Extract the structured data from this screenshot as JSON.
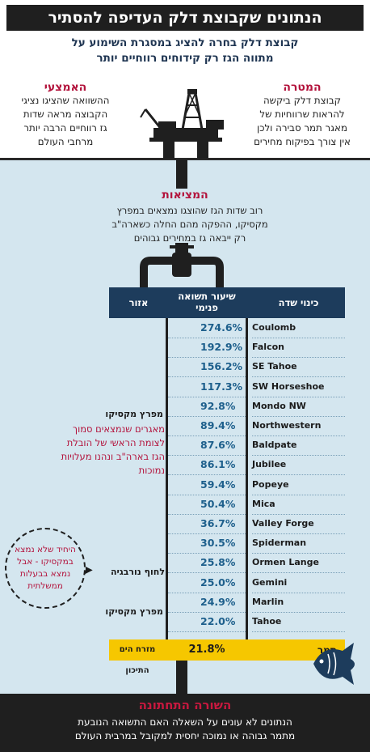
{
  "header": {
    "title": "הנתונים שקבוצת דלק העדיפה להסתיר",
    "subtitle_line1": "קבוצת דלק בחרה להציג במסגרת השימוע על",
    "subtitle_line2": "מתווה הגז רק קידוחים רווחיים יותר"
  },
  "goal": {
    "heading": "המטרה",
    "lines": [
      "קבוצת דלק ביקשה",
      "להראות שרווחיות של",
      "מאגר תמר סבירה ולכן",
      "אין צורך בפיקוח מחירים"
    ]
  },
  "means": {
    "heading": "האמצעי",
    "lines": [
      "ההשוואה שהציגו נציגי",
      "הקבוצה מראה שדות",
      "גז רווחיים הרבה יותר",
      "מרחבי העולם"
    ]
  },
  "findings": {
    "heading": "המציאות",
    "lines": [
      "רוב שדות הגז שהוצגו נמצאים במפרץ",
      "מקסיקו, ההפקה מהם החלה כשארה\"ב",
      "רק ייבאה גז במחירים גבוהים"
    ]
  },
  "table": {
    "col_field": "כינוי שדה",
    "col_return_line1": "שיעור תשואה",
    "col_return_line2": "פנימי",
    "col_region": "אזור",
    "rows": [
      {
        "field": "Coulomb",
        "return": "274.6%"
      },
      {
        "field": "Falcon",
        "return": "192.9%"
      },
      {
        "field": "SE Tahoe",
        "return": "156.2%"
      },
      {
        "field": "SW Horseshoe",
        "return": "117.3%"
      },
      {
        "field": "Mondo NW",
        "return": "92.8%"
      },
      {
        "field": "Northwestern",
        "return": "89.4%"
      },
      {
        "field": "Baldpate",
        "return": "87.6%"
      },
      {
        "field": "Jubilee",
        "return": "86.1%"
      },
      {
        "field": "Popeye",
        "return": "59.4%"
      },
      {
        "field": "Mica",
        "return": "50.4%"
      },
      {
        "field": "Valley Forge",
        "return": "36.7%"
      },
      {
        "field": "Spiderman",
        "return": "30.5%"
      },
      {
        "field": "Ormen Lange",
        "return": "25.8%"
      },
      {
        "field": "Gemini",
        "return": "25.0%"
      },
      {
        "field": "Marlin",
        "return": "24.9%"
      },
      {
        "field": "Tahoe",
        "return": "22.0%"
      }
    ],
    "highlight_row": {
      "field": "תמר",
      "return": "21.8%",
      "region": "מזרח הים התיכון"
    },
    "regions": {
      "gulf1": "מפרץ מקסיקו",
      "gulf1_note": [
        "מאגרים שנמצאים סמוך",
        "לצומת הראשי של הובלת",
        "הגז בארה\"ב ונהנו מעלויות",
        "נמוכות"
      ],
      "norway": "לחוף נורבגיה",
      "gulf2": "מפרץ מקסיקו"
    }
  },
  "callout": {
    "lines": [
      "היחיד שלא נמצא",
      "במקסיקו - אבל",
      "נמצא בבעלות",
      "ממשלתית"
    ]
  },
  "bottom": {
    "heading": "השורה התחתונה",
    "line1": "הנתונים לא עונים על השאלה האם התשואה הנובעת",
    "line2": "מתמר גבוהה או נמוכה יחסית למקובל במרבית העולם"
  },
  "colors": {
    "accent_red": "#b3133c",
    "navy": "#1d3c5c",
    "highlight_yellow": "#f6c700",
    "water": "#d4e6ef"
  }
}
